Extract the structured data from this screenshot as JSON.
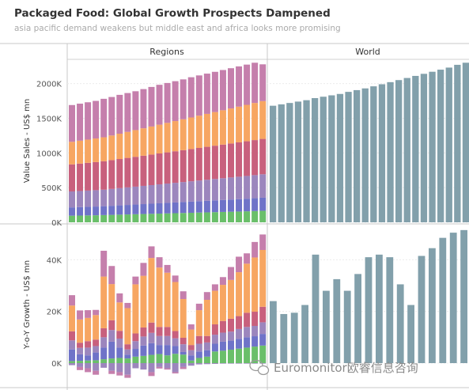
{
  "title": "Packaged Food: Global Growth Prospects Dampened",
  "subtitle": "asia pacific demand weakens but middle east and africa looks more promising",
  "watermark": "Euromonitor欧睿信息咨询",
  "chart_data": [
    {
      "type": "bar",
      "stacked": true,
      "panel": "Regions",
      "ylabel": "Value Sales - US$ mn",
      "yticks": [
        "0K",
        "500K",
        "1000K",
        "1500K",
        "2000K"
      ],
      "ylim": [
        -80,
        2280
      ],
      "series": [
        {
          "color": "#6abf6a",
          "values": [
            95,
            97,
            99,
            101,
            104,
            107,
            110,
            113,
            116,
            119,
            122,
            125,
            128,
            131,
            134,
            137,
            140,
            143,
            146,
            149,
            152,
            155,
            158,
            162,
            166
          ]
        },
        {
          "color": "#6f73c8",
          "values": [
            120,
            122,
            124,
            126,
            128,
            131,
            134,
            137,
            140,
            143,
            146,
            149,
            152,
            155,
            158,
            161,
            164,
            167,
            170,
            173,
            176,
            179,
            182,
            185,
            188
          ]
        },
        {
          "color": "#9c86bd",
          "values": [
            230,
            232,
            234,
            236,
            238,
            243,
            248,
            253,
            258,
            263,
            268,
            273,
            278,
            283,
            288,
            293,
            298,
            303,
            308,
            313,
            318,
            323,
            328,
            333,
            338
          ]
        },
        {
          "color": "#c8607d",
          "values": [
            390,
            395,
            400,
            405,
            410,
            415,
            420,
            425,
            430,
            435,
            440,
            445,
            450,
            455,
            460,
            465,
            470,
            475,
            480,
            485,
            490,
            495,
            500,
            505,
            510
          ]
        },
        {
          "color": "#f7a662",
          "values": [
            325,
            330,
            335,
            340,
            345,
            355,
            365,
            375,
            385,
            395,
            405,
            415,
            425,
            435,
            445,
            455,
            465,
            475,
            485,
            495,
            505,
            515,
            525,
            535,
            545
          ]
        },
        {
          "color": "#c57fac",
          "values": [
            530,
            534,
            538,
            542,
            555,
            555,
            560,
            560,
            560,
            565,
            570,
            575,
            575,
            575,
            575,
            580,
            580,
            580,
            580,
            580,
            580,
            580,
            580,
            580,
            530
          ]
        }
      ]
    },
    {
      "type": "bar",
      "panel": "World",
      "yticks": [
        "0K",
        "500K",
        "1000K",
        "1500K",
        "2000K"
      ],
      "ylim": [
        -80,
        2280
      ],
      "series": [
        {
          "color": "#82a0ab",
          "values": [
            1680,
            1700,
            1720,
            1740,
            1760,
            1790,
            1810,
            1830,
            1850,
            1880,
            1905,
            1930,
            1960,
            1990,
            2020,
            2050,
            2080,
            2110,
            2140,
            2170,
            2200,
            2230,
            2270,
            2300
          ]
        }
      ]
    },
    {
      "type": "bar",
      "stacked": true,
      "panel": "Regions",
      "ylabel": "Y-o-Y Growth - US$ mn",
      "yticks": [
        "0K",
        "20K",
        "40K"
      ],
      "ylim": [
        -4000,
        52000
      ],
      "series": [
        {
          "color": "#6abf6a",
          "values": [
            800,
            900,
            1000,
            1100,
            1500,
            1800,
            2000,
            1800,
            2500,
            2800,
            3200,
            3500,
            3000,
            3600,
            3300,
            1000,
            2000,
            2500,
            4500,
            4800,
            5200,
            5600,
            6000,
            6400,
            6800
          ]
        },
        {
          "color": "#6f73c8",
          "values": [
            4500,
            2500,
            2000,
            3000,
            4500,
            6500,
            4000,
            1500,
            3000,
            4000,
            4500,
            3500,
            4000,
            3000,
            1000,
            2000,
            2500,
            2500,
            3000,
            3500,
            3500,
            3800,
            4000,
            4000,
            4500
          ]
        },
        {
          "color": "#9c86bd",
          "values": [
            3500,
            2500,
            3000,
            2500,
            4000,
            4500,
            3500,
            2000,
            3000,
            3500,
            4000,
            3500,
            3500,
            3000,
            3000,
            2000,
            3000,
            3000,
            3500,
            3500,
            3500,
            3800,
            4000,
            4000,
            4500
          ]
        },
        {
          "color": "#c8607d",
          "values": [
            3500,
            2000,
            2500,
            2500,
            3500,
            3800,
            3000,
            2000,
            3000,
            3500,
            4000,
            3500,
            3500,
            2800,
            2500,
            2000,
            3000,
            2500,
            4000,
            4500,
            5000,
            5000,
            5500,
            5500,
            6000
          ]
        },
        {
          "color": "#f7a662",
          "values": [
            10000,
            9000,
            9000,
            9500,
            20000,
            14000,
            11000,
            14000,
            19000,
            20000,
            25000,
            23000,
            21000,
            19000,
            15000,
            6000,
            10000,
            14000,
            13000,
            14000,
            15000,
            17000,
            19000,
            21000,
            22000
          ]
        },
        {
          "color": "#c57fac",
          "values": [
            4000,
            3500,
            3000,
            2000,
            10000,
            7000,
            3500,
            2000,
            3000,
            5000,
            4500,
            4000,
            3000,
            2500,
            3000,
            2000,
            2500,
            3000,
            2500,
            3000,
            5000,
            6000,
            4000,
            6000,
            6000
          ]
        },
        {
          "color": "#6abf6a",
          "values": [
            0,
            0,
            0,
            0,
            0,
            0,
            0,
            0,
            0,
            0,
            0,
            0,
            0,
            0,
            0,
            0,
            0,
            0,
            0,
            0,
            0,
            0,
            0,
            0,
            0
          ]
        }
      ],
      "negatives": [
        {
          "color": "#9c86bd",
          "values": [
            -800,
            -1500,
            -2000,
            -3000,
            -1800,
            -3000,
            -3500,
            -4500,
            -2000,
            -2500,
            -3500,
            -1500,
            -2000,
            -3500,
            -1500,
            -1000,
            -500,
            -400,
            -300,
            -200,
            -200,
            -200,
            -200,
            -200,
            -200
          ]
        },
        {
          "color": "#c57fac",
          "values": [
            0,
            -1200,
            -1500,
            -1500,
            0,
            -1200,
            -1300,
            -1200,
            0,
            0,
            -1500,
            -600,
            -500,
            -500,
            -800,
            0,
            0,
            0,
            0,
            0,
            0,
            0,
            0,
            0,
            0
          ]
        }
      ]
    },
    {
      "type": "bar",
      "panel": "World",
      "yticks": [
        "0K",
        "20K",
        "40K"
      ],
      "ylim": [
        -4000,
        52000
      ],
      "series": [
        {
          "color": "#82a0ab",
          "values": [
            24000,
            19000,
            19500,
            22500,
            42000,
            28000,
            32500,
            28000,
            34500,
            41000,
            42000,
            41000,
            30500,
            22500,
            41500,
            44500,
            48500,
            50500,
            51500
          ]
        }
      ]
    }
  ],
  "panels": {
    "left": "Regions",
    "right": "World"
  }
}
